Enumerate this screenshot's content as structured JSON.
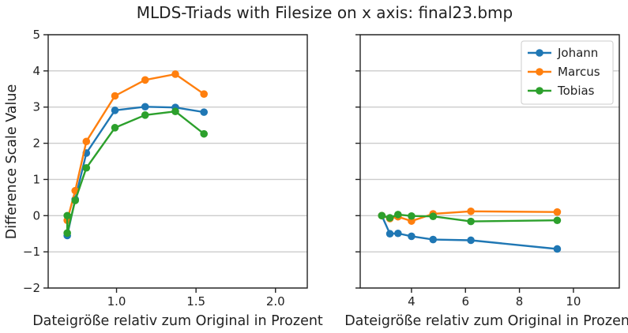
{
  "chart_data": {
    "type": "line",
    "title": "MLDS-Triads with Filesize on x axis: final23.bmp",
    "ylabel": "Difference Scale Value",
    "ylim": [
      -2,
      5
    ],
    "yticks": [
      -2,
      -1,
      0,
      1,
      2,
      3,
      4,
      5
    ],
    "grid": "horizontal",
    "colors": {
      "Johann": "#1f77b4",
      "Marcus": "#ff7f0e",
      "Tobias": "#2ca02c"
    },
    "legend": {
      "placement": "top-right",
      "entries": [
        "Johann",
        "Marcus",
        "Tobias"
      ]
    },
    "panels": [
      {
        "xlabel": "Dateigröße relativ zum Original in Prozent",
        "xlim": [
          0.57,
          2.2
        ],
        "xticks": [
          1.0,
          1.5,
          2.0
        ],
        "xtick_labels": [
          "1.0",
          "1.5",
          "2.0"
        ],
        "series": [
          {
            "name": "Johann",
            "x": [
              0.69,
              0.74,
              0.81,
              0.99,
              1.18,
              1.37,
              1.55
            ],
            "y": [
              -0.55,
              0.45,
              1.73,
              2.91,
              3.01,
              2.99,
              2.86
            ]
          },
          {
            "name": "Marcus",
            "x": [
              0.69,
              0.74,
              0.81,
              0.99,
              1.18,
              1.37,
              1.55
            ],
            "y": [
              -0.13,
              0.69,
              2.05,
              3.31,
              3.75,
              3.91,
              3.36
            ]
          },
          {
            "name": "Tobias",
            "x": [
              0.69,
              0.69,
              0.74,
              0.81,
              0.99,
              1.18,
              1.37,
              1.55
            ],
            "y": [
              0.0,
              -0.48,
              0.42,
              1.32,
              2.43,
              2.78,
              2.88,
              2.26
            ]
          }
        ]
      },
      {
        "xlabel": "Dateigröße relativ zum Original in Prozent",
        "xlim": [
          2.1,
          11.7
        ],
        "xticks": [
          4,
          6,
          8,
          10
        ],
        "xtick_labels": [
          "4",
          "6",
          "8",
          "10"
        ],
        "series": [
          {
            "name": "Johann",
            "x": [
              2.9,
              3.2,
              3.5,
              4.0,
              4.8,
              6.2,
              9.4
            ],
            "y": [
              0.0,
              -0.5,
              -0.49,
              -0.57,
              -0.66,
              -0.68,
              -0.92
            ]
          },
          {
            "name": "Marcus",
            "x": [
              2.9,
              3.2,
              3.5,
              4.0,
              4.8,
              6.2,
              9.4
            ],
            "y": [
              0.0,
              -0.08,
              -0.03,
              -0.15,
              0.05,
              0.12,
              0.1
            ]
          },
          {
            "name": "Tobias",
            "x": [
              2.9,
              3.2,
              3.5,
              4.0,
              4.8,
              6.2,
              9.4
            ],
            "y": [
              0.0,
              -0.06,
              0.03,
              -0.01,
              -0.02,
              -0.16,
              -0.13
            ]
          }
        ]
      }
    ]
  }
}
